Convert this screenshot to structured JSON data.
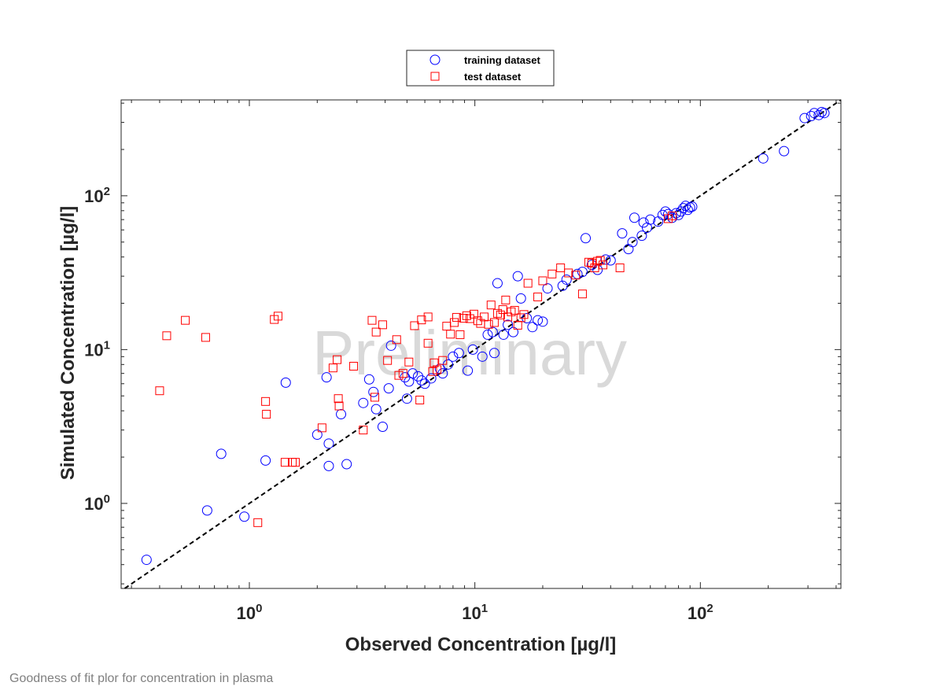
{
  "caption": "Goodness of fit plor for concentration in plasma",
  "chart_data": {
    "type": "scatter",
    "title": "",
    "xlabel": "Observed Concentration [µg/l]",
    "ylabel": "Simulated Concentration [µg/l]",
    "x_scale": "log",
    "y_scale": "log",
    "xlim": [
      0.27,
      420
    ],
    "ylim": [
      0.28,
      420
    ],
    "x_ticks": [
      {
        "value": 1,
        "base": "10",
        "exp": "0"
      },
      {
        "value": 10,
        "base": "10",
        "exp": "1"
      },
      {
        "value": 100,
        "base": "10",
        "exp": "2"
      }
    ],
    "y_ticks": [
      {
        "value": 1,
        "base": "10",
        "exp": "0"
      },
      {
        "value": 10,
        "base": "10",
        "exp": "1"
      },
      {
        "value": 100,
        "base": "10",
        "exp": "2"
      }
    ],
    "legend_position": "top-center, outside",
    "watermark": "Preliminary",
    "reference_line": {
      "label": "identity",
      "style": "dashed",
      "color": "#000000"
    },
    "series": [
      {
        "name": "training dataset",
        "marker": "circle",
        "color": "#0000ff",
        "points": [
          [
            0.35,
            0.43
          ],
          [
            0.65,
            0.9
          ],
          [
            0.75,
            2.1
          ],
          [
            0.95,
            0.82
          ],
          [
            1.18,
            1.9
          ],
          [
            1.45,
            6.1
          ],
          [
            2.0,
            2.8
          ],
          [
            2.2,
            6.6
          ],
          [
            2.25,
            1.75
          ],
          [
            2.25,
            2.45
          ],
          [
            2.55,
            3.8
          ],
          [
            2.7,
            1.8
          ],
          [
            3.2,
            4.5
          ],
          [
            3.4,
            6.4
          ],
          [
            3.55,
            5.3
          ],
          [
            3.65,
            4.1
          ],
          [
            3.9,
            3.15
          ],
          [
            4.15,
            5.6
          ],
          [
            4.25,
            10.6
          ],
          [
            4.9,
            6.6
          ],
          [
            5.0,
            4.8
          ],
          [
            5.1,
            6.2
          ],
          [
            5.3,
            7.0
          ],
          [
            5.6,
            6.7
          ],
          [
            5.8,
            6.3
          ],
          [
            6.0,
            6.0
          ],
          [
            6.4,
            6.5
          ],
          [
            7.0,
            7.5
          ],
          [
            7.2,
            7.0
          ],
          [
            7.6,
            8.0
          ],
          [
            8.0,
            9.0
          ],
          [
            8.5,
            9.5
          ],
          [
            9.3,
            7.3
          ],
          [
            9.8,
            10.0
          ],
          [
            10.8,
            9.0
          ],
          [
            11.4,
            12.5
          ],
          [
            12.0,
            13.0
          ],
          [
            12.2,
            9.5
          ],
          [
            12.6,
            27.0
          ],
          [
            13.4,
            12.5
          ],
          [
            14.0,
            14.5
          ],
          [
            14.8,
            13.0
          ],
          [
            15.5,
            30.0
          ],
          [
            16.0,
            21.5
          ],
          [
            17.0,
            16.0
          ],
          [
            18.0,
            14.0
          ],
          [
            19.0,
            15.5
          ],
          [
            20.0,
            15.2
          ],
          [
            21.0,
            25.0
          ],
          [
            24.5,
            26.0
          ],
          [
            25.5,
            28.5
          ],
          [
            28.5,
            31.0
          ],
          [
            30.0,
            32.0
          ],
          [
            31.0,
            53.0
          ],
          [
            33.0,
            35.5
          ],
          [
            35.0,
            33.0
          ],
          [
            38.0,
            38.5
          ],
          [
            40.0,
            38.0
          ],
          [
            45.0,
            57.0
          ],
          [
            48.0,
            45.0
          ],
          [
            50.0,
            50.0
          ],
          [
            51.0,
            72.0
          ],
          [
            55.0,
            55.0
          ],
          [
            56.0,
            67.0
          ],
          [
            58.0,
            62.0
          ],
          [
            60.0,
            70.0
          ],
          [
            65.0,
            68.0
          ],
          [
            68.0,
            75.0
          ],
          [
            70.0,
            79.0
          ],
          [
            72.0,
            76.0
          ],
          [
            75.0,
            72.0
          ],
          [
            78.0,
            77.0
          ],
          [
            80.0,
            75.0
          ],
          [
            82.0,
            79.0
          ],
          [
            84.0,
            83.0
          ],
          [
            86.0,
            86.0
          ],
          [
            88.0,
            81.0
          ],
          [
            90.0,
            84.0
          ],
          [
            92.0,
            85.0
          ],
          [
            190.0,
            175.0
          ],
          [
            235.0,
            195.0
          ],
          [
            290.0,
            320.0
          ],
          [
            310.0,
            330.0
          ],
          [
            320.0,
            345.0
          ],
          [
            335.0,
            335.0
          ],
          [
            345.0,
            350.0
          ],
          [
            355.0,
            345.0
          ]
        ]
      },
      {
        "name": "test dataset",
        "marker": "square",
        "color": "#ff0000",
        "points": [
          [
            0.4,
            5.4
          ],
          [
            0.43,
            12.3
          ],
          [
            0.52,
            15.5
          ],
          [
            0.64,
            12.0
          ],
          [
            1.09,
            0.75
          ],
          [
            1.18,
            4.6
          ],
          [
            1.19,
            3.8
          ],
          [
            1.29,
            15.7
          ],
          [
            1.34,
            16.5
          ],
          [
            1.44,
            1.85
          ],
          [
            1.55,
            1.85
          ],
          [
            1.6,
            1.85
          ],
          [
            2.1,
            3.1
          ],
          [
            2.35,
            7.6
          ],
          [
            2.45,
            8.6
          ],
          [
            2.48,
            4.8
          ],
          [
            2.5,
            4.3
          ],
          [
            2.9,
            7.8
          ],
          [
            3.2,
            3.0
          ],
          [
            3.5,
            15.5
          ],
          [
            3.6,
            4.9
          ],
          [
            3.65,
            13.0
          ],
          [
            3.9,
            14.5
          ],
          [
            4.1,
            8.5
          ],
          [
            4.5,
            11.6
          ],
          [
            4.6,
            6.8
          ],
          [
            4.8,
            7.0
          ],
          [
            5.1,
            8.3
          ],
          [
            5.4,
            14.3
          ],
          [
            5.7,
            4.7
          ],
          [
            5.8,
            15.6
          ],
          [
            6.2,
            11.0
          ],
          [
            6.2,
            16.3
          ],
          [
            6.5,
            7.2
          ],
          [
            6.6,
            8.2
          ],
          [
            6.8,
            7.4
          ],
          [
            7.2,
            8.5
          ],
          [
            7.5,
            14.2
          ],
          [
            7.8,
            12.6
          ],
          [
            8.1,
            15.0
          ],
          [
            8.3,
            16.2
          ],
          [
            8.6,
            12.5
          ],
          [
            8.9,
            16.0
          ],
          [
            9.2,
            16.6
          ],
          [
            9.5,
            15.9
          ],
          [
            9.9,
            17.0
          ],
          [
            10.3,
            15.4
          ],
          [
            10.6,
            14.8
          ],
          [
            11.0,
            16.3
          ],
          [
            11.5,
            14.6
          ],
          [
            11.8,
            19.5
          ],
          [
            12.2,
            15.0
          ],
          [
            12.6,
            17.2
          ],
          [
            13.0,
            16.8
          ],
          [
            13.3,
            18.2
          ],
          [
            13.7,
            21.0
          ],
          [
            14.0,
            16.3
          ],
          [
            14.5,
            17.6
          ],
          [
            15.0,
            18.0
          ],
          [
            15.5,
            14.4
          ],
          [
            16.0,
            16.1
          ],
          [
            16.5,
            16.9
          ],
          [
            17.2,
            27.0
          ],
          [
            19.0,
            22.0
          ],
          [
            20.0,
            28.0
          ],
          [
            22.0,
            31.0
          ],
          [
            24.0,
            34.0
          ],
          [
            26.0,
            31.5
          ],
          [
            28.0,
            30.5
          ],
          [
            30.0,
            23.0
          ],
          [
            32.0,
            37.0
          ],
          [
            33.0,
            36.5
          ],
          [
            34.0,
            34.0
          ],
          [
            35.0,
            37.5
          ],
          [
            36.0,
            38.0
          ],
          [
            37.0,
            35.5
          ],
          [
            44.0,
            34.0
          ],
          [
            72.0,
            71.0
          ],
          [
            75.0,
            74.0
          ]
        ]
      }
    ]
  }
}
